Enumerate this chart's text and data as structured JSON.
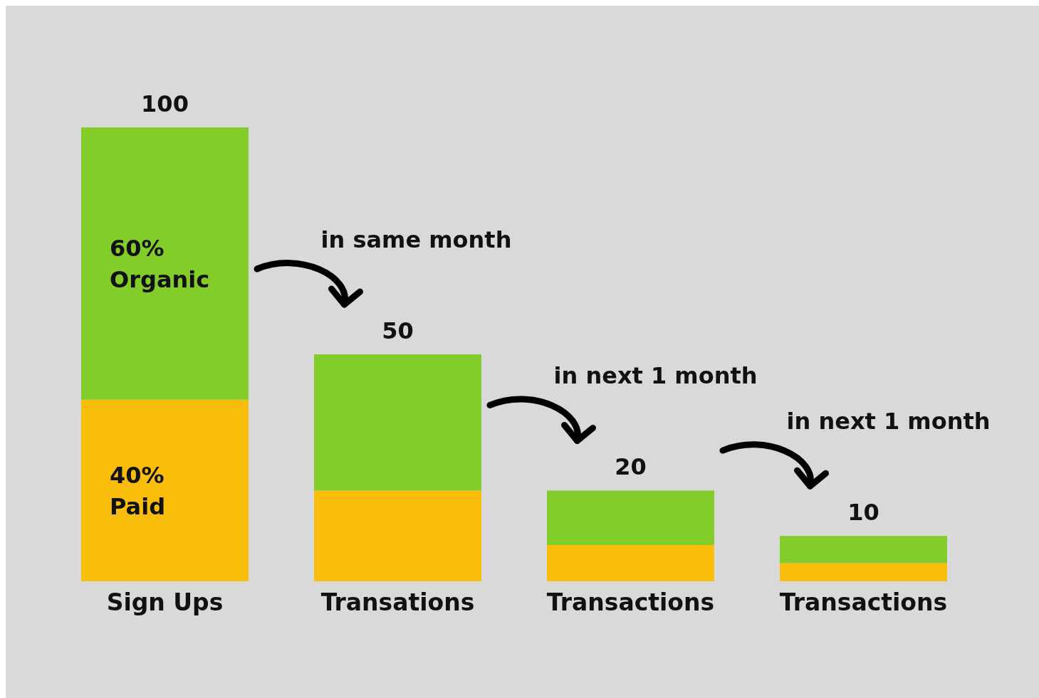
{
  "chart_data": {
    "type": "bar",
    "stacked": true,
    "categories": [
      "Sign Ups",
      "Transations",
      "Transactions",
      "Transactions"
    ],
    "series": [
      {
        "name": "Paid",
        "color": "#f9bd0c",
        "values": [
          40,
          20,
          8,
          4
        ],
        "value_labels": [
          "40%",
          null,
          null,
          null
        ]
      },
      {
        "name": "Organic",
        "color": "#82cd2a",
        "values": [
          60,
          30,
          12,
          6
        ],
        "value_labels": [
          "60%",
          null,
          null,
          null
        ]
      }
    ],
    "totals": [
      "100",
      "50",
      "20",
      "10"
    ],
    "annotations": [
      "in same month",
      "in next 1 month",
      "in next 1 month"
    ]
  }
}
